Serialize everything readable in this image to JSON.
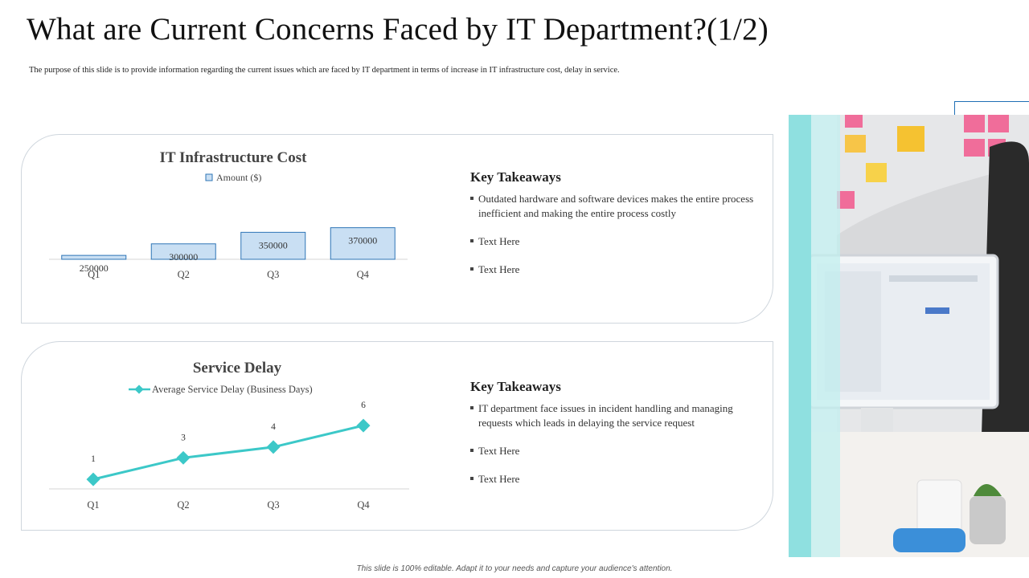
{
  "title": "What are Current Concerns Faced by IT Department?(1/2)",
  "subtitle": "The purpose of this slide is to provide information regarding the current issues which are faced by IT department in terms of increase in IT infrastructure cost, delay in service.",
  "footer": "This slide is 100% editable. Adapt it to your needs and capture your audience's attention.",
  "colors": {
    "bar_fill": "#c9dff3",
    "bar_stroke": "#2e75b6",
    "line": "#3cc8c8",
    "accent": "#8fe0e0"
  },
  "chart_data": [
    {
      "type": "bar",
      "title": "IT Infrastructure Cost",
      "categories": [
        "Q1",
        "Q2",
        "Q3",
        "Q4"
      ],
      "series": [
        {
          "name": "Amount ($)",
          "values": [
            250000,
            300000,
            350000,
            370000
          ]
        }
      ],
      "ylim": [
        0,
        400000
      ],
      "grid": false,
      "legend": "top-center"
    },
    {
      "type": "line",
      "title": "Service Delay",
      "categories": [
        "Q1",
        "Q2",
        "Q3",
        "Q4"
      ],
      "series": [
        {
          "name": "Average Service Delay (Business Days)",
          "values": [
            1,
            3,
            4,
            6
          ]
        }
      ],
      "ylim": [
        0,
        6
      ],
      "grid": false,
      "legend": "top-center"
    }
  ],
  "takeaways_top": {
    "heading": "Key Takeaways",
    "items": [
      "Outdated hardware and software devices makes the entire process inefficient and making the entire process costly",
      "Text Here",
      "Text Here"
    ]
  },
  "takeaways_bottom": {
    "heading": "Key Takeaways",
    "items": [
      "IT department face issues in incident handling and managing requests which leads in delaying the service request",
      "Text Here",
      "Text Here"
    ]
  }
}
